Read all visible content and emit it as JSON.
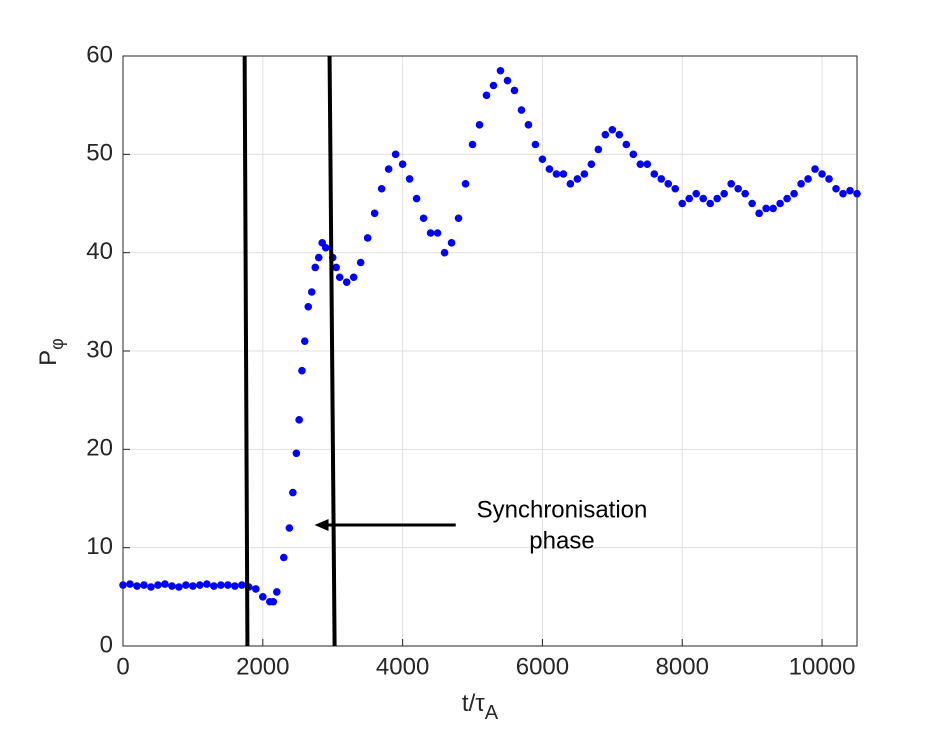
{
  "chart_data": {
    "type": "scatter",
    "xlabel": {
      "main": "t/τ",
      "sub": "A"
    },
    "ylabel": {
      "main": "P",
      "sub": "φ"
    },
    "x": [
      0,
      100,
      200,
      300,
      400,
      500,
      600,
      700,
      800,
      900,
      1000,
      1100,
      1200,
      1300,
      1400,
      1500,
      1600,
      1700,
      1800,
      1900,
      2000,
      2100,
      2150,
      2200,
      2300,
      2380,
      2430,
      2480,
      2520,
      2560,
      2600,
      2650,
      2700,
      2750,
      2800,
      2850,
      2900,
      3000,
      3050,
      3100,
      3200,
      3300,
      3400,
      3500,
      3600,
      3700,
      3800,
      3900,
      4000,
      4100,
      4200,
      4300,
      4400,
      4500,
      4600,
      4700,
      4800,
      4900,
      5000,
      5100,
      5200,
      5300,
      5400,
      5500,
      5600,
      5700,
      5800,
      5900,
      6000,
      6100,
      6200,
      6300,
      6400,
      6500,
      6600,
      6700,
      6800,
      6900,
      7000,
      7100,
      7200,
      7300,
      7400,
      7500,
      7600,
      7700,
      7800,
      7900,
      8000,
      8100,
      8200,
      8300,
      8400,
      8500,
      8600,
      8700,
      8800,
      8900,
      9000,
      9100,
      9200,
      9300,
      9400,
      9500,
      9600,
      9700,
      9800,
      9900,
      10000,
      10100,
      10200,
      10300,
      10400,
      10500
    ],
    "series": [
      {
        "color": "#0000ff",
        "values": [
          6.2,
          6.3,
          6.1,
          6.2,
          6.0,
          6.2,
          6.3,
          6.1,
          6.0,
          6.2,
          6.1,
          6.2,
          6.3,
          6.1,
          6.2,
          6.2,
          6.1,
          6.2,
          6.0,
          5.8,
          5.0,
          4.5,
          4.5,
          5.5,
          9,
          12,
          15.6,
          19.6,
          23,
          28,
          31,
          34.5,
          36,
          38.5,
          39.5,
          41,
          40.5,
          39.5,
          38.5,
          37.5,
          37,
          37.5,
          39,
          41.5,
          44,
          46.5,
          48.5,
          50,
          49,
          47.5,
          45.5,
          43.5,
          42,
          42,
          40,
          41,
          43.5,
          47,
          51,
          53,
          56,
          57,
          58.5,
          57.5,
          56.5,
          54.5,
          53,
          51,
          49.5,
          48.5,
          48,
          48,
          47,
          47.5,
          48,
          49,
          50.5,
          52,
          52.5,
          52,
          51,
          50,
          49,
          49,
          48,
          47.5,
          47,
          46.5,
          45,
          45.5,
          46,
          45.5,
          45,
          45.5,
          46,
          47,
          46.5,
          46,
          45,
          44,
          44.5,
          44.5,
          45,
          45.5,
          46,
          47,
          47.5,
          48.5,
          48,
          47.5,
          46.5,
          46,
          46.3,
          46
        ]
      }
    ],
    "xlim": [
      0,
      10500
    ],
    "ylim": [
      0,
      60
    ],
    "xticks": [
      0,
      2000,
      4000,
      6000,
      8000,
      10000
    ],
    "yticks": [
      0,
      10,
      20,
      30,
      40,
      50,
      60
    ],
    "grid": true,
    "vlines": [
      {
        "x_top": 1740,
        "x_bottom": 1780
      },
      {
        "x_top": 2955,
        "x_bottom": 3027
      }
    ],
    "annotation": {
      "lines": [
        "Synchronisation",
        "phase"
      ],
      "arrow_from": [
        4760,
        12.3
      ],
      "arrow_to": [
        2740,
        12.3
      ]
    }
  }
}
